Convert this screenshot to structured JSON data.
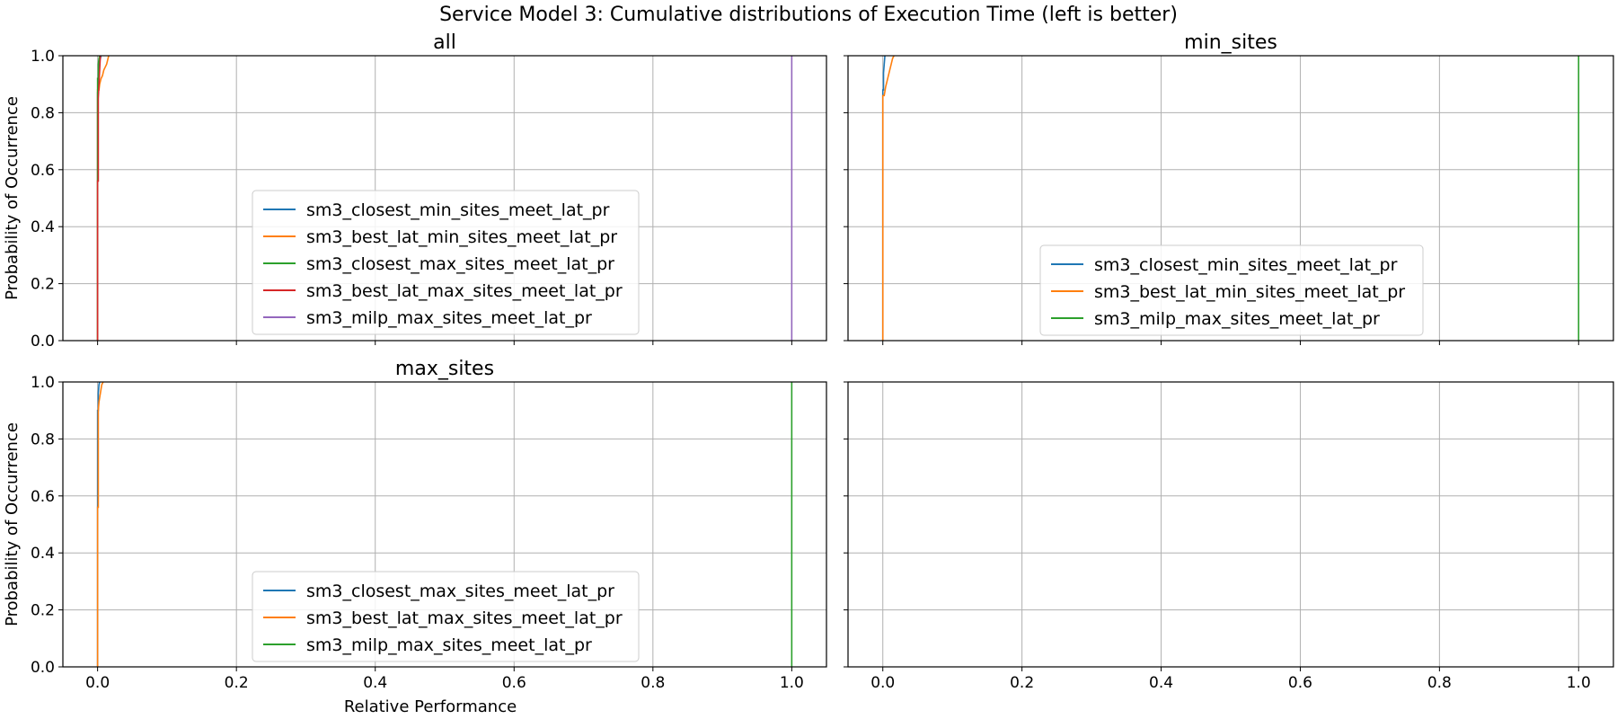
{
  "figure": {
    "title": "Service Model 3: Cumulative distributions of Execution Time (left is better)"
  },
  "chart_data": [
    {
      "type": "line",
      "title": "all",
      "xlabel": "",
      "ylabel": "Probability of Occurrence",
      "xlim": [
        -0.05,
        1.05
      ],
      "ylim": [
        0.0,
        1.0
      ],
      "xticks": [
        "0.0",
        "0.2",
        "0.4",
        "0.6",
        "0.8",
        "1.0"
      ],
      "yticks": [
        "0.0",
        "0.2",
        "0.4",
        "0.6",
        "0.8",
        "1.0"
      ],
      "show_xtick_labels": false,
      "show_ytick_labels": true,
      "grid": true,
      "legend_position": "lower-center",
      "series": [
        {
          "name": "sm3_closest_min_sites_meet_lat_pr",
          "color": "#1f77b4",
          "x": [
            0.0,
            0.0,
            0.001,
            0.001,
            0.002,
            0.003,
            0.004,
            0.005
          ],
          "y": [
            0.0,
            0.87,
            0.87,
            0.93,
            0.96,
            0.98,
            0.99,
            1.0
          ]
        },
        {
          "name": "sm3_best_lat_min_sites_meet_lat_pr",
          "color": "#ff7f0e",
          "x": [
            0.0,
            0.0,
            0.002,
            0.003,
            0.005,
            0.007,
            0.009,
            0.011,
            0.013,
            0.015,
            0.016
          ],
          "y": [
            0.0,
            0.88,
            0.88,
            0.9,
            0.92,
            0.93,
            0.95,
            0.96,
            0.97,
            0.99,
            1.0
          ]
        },
        {
          "name": "sm3_closest_max_sites_meet_lat_pr",
          "color": "#2ca02c",
          "x": [
            0.0,
            0.0,
            0.001,
            0.001,
            0.002,
            0.003
          ],
          "y": [
            0.0,
            0.92,
            0.92,
            0.97,
            0.99,
            1.0
          ]
        },
        {
          "name": "sm3_best_lat_max_sites_meet_lat_pr",
          "color": "#d62728",
          "x": [
            0.0,
            0.0,
            0.001,
            0.001,
            0.002,
            0.003,
            0.004
          ],
          "y": [
            0.0,
            0.56,
            0.56,
            0.85,
            0.9,
            0.95,
            1.0
          ]
        },
        {
          "name": "sm3_milp_max_sites_meet_lat_pr",
          "color": "#9467bd",
          "x": [
            1.0,
            1.0
          ],
          "y": [
            0.0,
            1.0
          ]
        }
      ]
    },
    {
      "type": "line",
      "title": "min_sites",
      "xlabel": "",
      "ylabel": "",
      "xlim": [
        -0.05,
        1.05
      ],
      "ylim": [
        0.0,
        1.0
      ],
      "xticks": [
        "0.0",
        "0.2",
        "0.4",
        "0.6",
        "0.8",
        "1.0"
      ],
      "yticks": [
        "0.0",
        "0.2",
        "0.4",
        "0.6",
        "0.8",
        "1.0"
      ],
      "show_xtick_labels": false,
      "show_ytick_labels": false,
      "grid": true,
      "legend_position": "lower-center",
      "series": [
        {
          "name": "sm3_closest_min_sites_meet_lat_pr",
          "color": "#1f77b4",
          "x": [
            0.0,
            0.0,
            0.001,
            0.001,
            0.002,
            0.003
          ],
          "y": [
            0.0,
            0.88,
            0.88,
            0.94,
            0.97,
            1.0
          ]
        },
        {
          "name": "sm3_best_lat_min_sites_meet_lat_pr",
          "color": "#ff7f0e",
          "x": [
            0.0,
            0.0,
            0.002,
            0.004,
            0.006,
            0.008,
            0.01,
            0.012,
            0.014,
            0.016
          ],
          "y": [
            0.0,
            0.86,
            0.86,
            0.89,
            0.91,
            0.93,
            0.95,
            0.97,
            0.99,
            1.0
          ]
        },
        {
          "name": "sm3_milp_max_sites_meet_lat_pr",
          "color": "#2ca02c",
          "x": [
            1.0,
            1.0
          ],
          "y": [
            0.0,
            1.0
          ]
        }
      ]
    },
    {
      "type": "line",
      "title": "max_sites",
      "xlabel": "Relative Performance",
      "ylabel": "Probability of Occurrence",
      "xlim": [
        -0.05,
        1.05
      ],
      "ylim": [
        0.0,
        1.0
      ],
      "xticks": [
        "0.0",
        "0.2",
        "0.4",
        "0.6",
        "0.8",
        "1.0"
      ],
      "yticks": [
        "0.0",
        "0.2",
        "0.4",
        "0.6",
        "0.8",
        "1.0"
      ],
      "show_xtick_labels": true,
      "show_ytick_labels": true,
      "grid": true,
      "legend_position": "lower-center",
      "series": [
        {
          "name": "sm3_closest_max_sites_meet_lat_pr",
          "color": "#1f77b4",
          "x": [
            0.0,
            0.0,
            0.001,
            0.001,
            0.002,
            0.003
          ],
          "y": [
            0.0,
            0.9,
            0.9,
            0.96,
            0.99,
            1.0
          ]
        },
        {
          "name": "sm3_best_lat_max_sites_meet_lat_pr",
          "color": "#ff7f0e",
          "x": [
            0.0,
            0.0,
            0.001,
            0.001,
            0.002,
            0.004,
            0.006,
            0.008
          ],
          "y": [
            0.0,
            0.56,
            0.56,
            0.9,
            0.93,
            0.96,
            0.99,
            1.0
          ]
        },
        {
          "name": "sm3_milp_max_sites_meet_lat_pr",
          "color": "#2ca02c",
          "x": [
            1.0,
            1.0
          ],
          "y": [
            0.0,
            1.0
          ]
        }
      ]
    },
    {
      "type": "line",
      "title": "",
      "xlabel": "",
      "ylabel": "",
      "xlim": [
        -0.05,
        1.05
      ],
      "ylim": [
        0.0,
        1.0
      ],
      "xticks": [
        "0.0",
        "0.2",
        "0.4",
        "0.6",
        "0.8",
        "1.0"
      ],
      "yticks": [
        "0.0",
        "0.2",
        "0.4",
        "0.6",
        "0.8",
        "1.0"
      ],
      "show_xtick_labels": true,
      "show_ytick_labels": false,
      "grid": true,
      "legend_position": "",
      "series": []
    }
  ]
}
